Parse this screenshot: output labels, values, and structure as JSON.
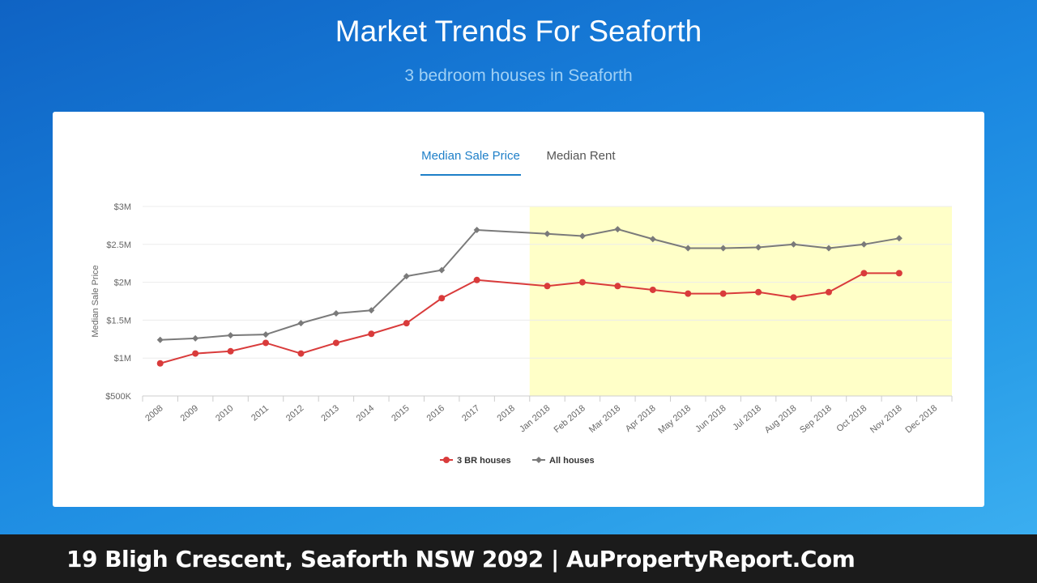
{
  "header": {
    "title": "Market Trends For Seaforth",
    "subtitle": "3 bedroom houses in Seaforth"
  },
  "tabs": [
    {
      "label": "Median Sale Price",
      "active": true
    },
    {
      "label": "Median Rent",
      "active": false
    }
  ],
  "footer": {
    "text": "19 Bligh Crescent, Seaforth NSW 2092 | AuPropertyReport.Com"
  },
  "chart_data": {
    "type": "line",
    "ylabel": "Median Sale Price",
    "xlabel": "",
    "ylim": [
      500000,
      3000000
    ],
    "yticks": [
      {
        "value": 500000,
        "label": "$500K"
      },
      {
        "value": 1000000,
        "label": "$1M"
      },
      {
        "value": 1500000,
        "label": "$1.5M"
      },
      {
        "value": 2000000,
        "label": "$2M"
      },
      {
        "value": 2500000,
        "label": "$2.5M"
      },
      {
        "value": 3000000,
        "label": "$3M"
      }
    ],
    "categories": [
      "2008",
      "2009",
      "2010",
      "2011",
      "2012",
      "2013",
      "2014",
      "2015",
      "2016",
      "2017",
      "2018",
      "Jan 2018",
      "Feb 2018",
      "Mar 2018",
      "Apr 2018",
      "May 2018",
      "Jun 2018",
      "Jul 2018",
      "Aug 2018",
      "Sep 2018",
      "Oct 2018",
      "Nov 2018",
      "Dec 2018"
    ],
    "highlight_range": [
      "Jan 2018",
      "Dec 2018"
    ],
    "highlight_color": "#ffffc8",
    "legend_position": "bottom",
    "grid": true,
    "series": [
      {
        "name": "3 BR houses",
        "color": "#d93b3b",
        "marker": "circle",
        "values": [
          930000,
          1060000,
          1090000,
          1200000,
          1060000,
          1200000,
          1320000,
          1460000,
          1790000,
          2030000,
          null,
          1950000,
          2000000,
          1950000,
          1900000,
          1850000,
          1850000,
          1870000,
          1800000,
          1870000,
          2120000,
          2120000,
          null
        ]
      },
      {
        "name": "All houses",
        "color": "#7a7a7a",
        "marker": "diamond",
        "values": [
          1240000,
          1260000,
          1300000,
          1310000,
          1460000,
          1590000,
          1630000,
          2080000,
          2160000,
          2690000,
          null,
          2640000,
          2610000,
          2700000,
          2570000,
          2450000,
          2450000,
          2460000,
          2500000,
          2450000,
          2500000,
          2580000,
          null
        ]
      }
    ]
  }
}
